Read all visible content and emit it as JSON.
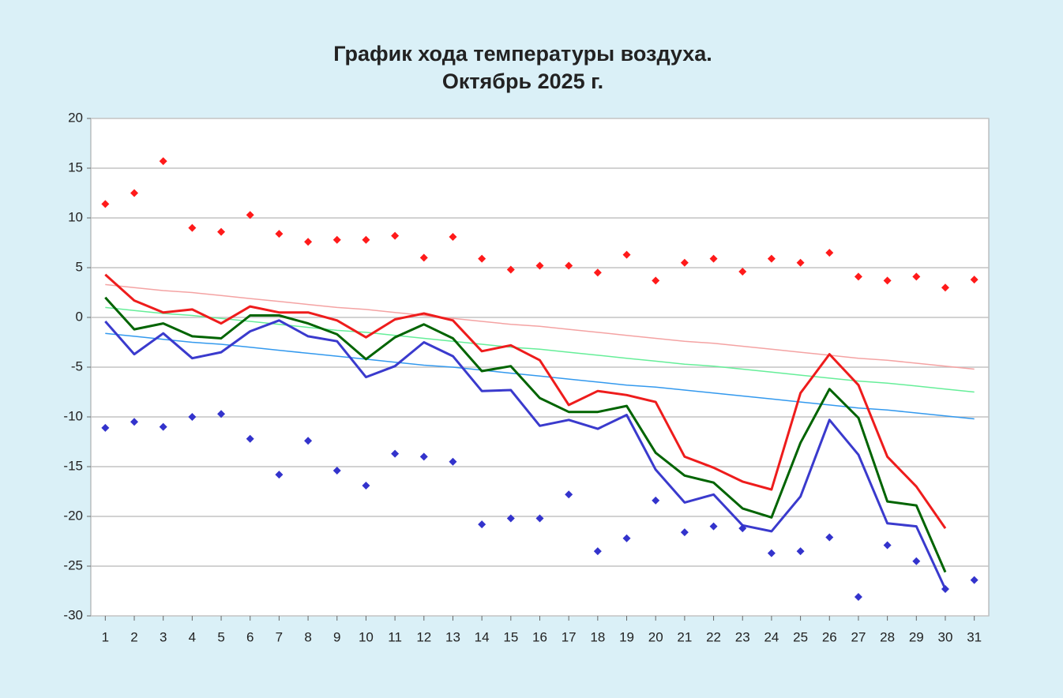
{
  "chart_data": {
    "type": "line",
    "title": "График хода температуры воздуха.",
    "subtitle": "Октябрь 2025 г.",
    "categories": [
      "1",
      "2",
      "3",
      "4",
      "5",
      "6",
      "7",
      "8",
      "9",
      "10",
      "11",
      "12",
      "13",
      "14",
      "15",
      "16",
      "17",
      "18",
      "19",
      "20",
      "21",
      "22",
      "23",
      "24",
      "25",
      "26",
      "27",
      "28",
      "29",
      "30",
      "31"
    ],
    "ylim": [
      -30,
      20
    ],
    "yticks": [
      -30,
      -25,
      -20,
      -15,
      -10,
      -5,
      0,
      5,
      10,
      15,
      20
    ],
    "grid": true,
    "series": [
      {
        "style": "line",
        "width": 1.5,
        "color": "#f4a3a3",
        "values": [
          3.3,
          3.0,
          2.7,
          2.5,
          2.2,
          1.9,
          1.6,
          1.3,
          1.0,
          0.8,
          0.5,
          0.2,
          -0.1,
          -0.4,
          -0.7,
          -0.9,
          -1.2,
          -1.5,
          -1.8,
          -2.1,
          -2.4,
          -2.6,
          -2.9,
          -3.2,
          -3.5,
          -3.8,
          -4.1,
          -4.3,
          -4.6,
          -4.9,
          -5.2
        ]
      },
      {
        "style": "line",
        "width": 1.5,
        "color": "#66ee99",
        "values": [
          1.0,
          0.7,
          0.4,
          0.2,
          -0.1,
          -0.4,
          -0.7,
          -1.0,
          -1.3,
          -1.5,
          -1.8,
          -2.1,
          -2.4,
          -2.7,
          -3.0,
          -3.2,
          -3.5,
          -3.8,
          -4.1,
          -4.4,
          -4.7,
          -4.9,
          -5.2,
          -5.5,
          -5.8,
          -6.1,
          -6.4,
          -6.6,
          -6.9,
          -7.2,
          -7.5
        ]
      },
      {
        "style": "line",
        "width": 1.5,
        "color": "#3399ee",
        "values": [
          -1.6,
          -1.9,
          -2.2,
          -2.5,
          -2.7,
          -3.0,
          -3.3,
          -3.6,
          -3.9,
          -4.2,
          -4.5,
          -4.8,
          -5.0,
          -5.3,
          -5.6,
          -5.9,
          -6.2,
          -6.5,
          -6.8,
          -7.0,
          -7.3,
          -7.6,
          -7.9,
          -8.2,
          -8.5,
          -8.8,
          -9.1,
          -9.3,
          -9.6,
          -9.9,
          -10.2
        ]
      },
      {
        "style": "line",
        "width": 3,
        "color": "#ee1c1c",
        "values": [
          4.3,
          1.7,
          0.5,
          0.8,
          -0.6,
          1.1,
          0.5,
          0.5,
          -0.3,
          -2.0,
          -0.2,
          0.4,
          -0.3,
          -3.4,
          -2.8,
          -4.3,
          -8.8,
          -7.4,
          -7.8,
          -8.5,
          -14.0,
          -15.1,
          -16.5,
          -17.3,
          -7.6,
          -3.7,
          -6.8,
          -14.0,
          -17.0,
          -21.2,
          null
        ]
      },
      {
        "style": "line",
        "width": 3,
        "color": "#006400",
        "values": [
          2.0,
          -1.2,
          -0.6,
          -1.9,
          -2.1,
          0.2,
          0.2,
          -0.6,
          -1.7,
          -4.2,
          -2.0,
          -0.7,
          -2.1,
          -5.4,
          -4.9,
          -8.1,
          -9.5,
          -9.5,
          -8.9,
          -13.6,
          -15.9,
          -16.6,
          -19.2,
          -20.1,
          -12.6,
          -7.2,
          -10.1,
          -18.5,
          -18.9,
          -25.6,
          null
        ]
      },
      {
        "style": "line",
        "width": 3,
        "color": "#3a3acd",
        "values": [
          -0.4,
          -3.7,
          -1.6,
          -4.1,
          -3.5,
          -1.4,
          -0.3,
          -1.9,
          -2.4,
          -6.0,
          -4.9,
          -2.5,
          -3.9,
          -7.4,
          -7.3,
          -10.9,
          -10.3,
          -11.2,
          -9.8,
          -15.3,
          -18.6,
          -17.8,
          -20.9,
          -21.5,
          -18.0,
          -10.3,
          -13.8,
          -20.7,
          -21.0,
          -27.3,
          null
        ]
      },
      {
        "style": "markers",
        "color": "#ff1a1a",
        "values": [
          11.4,
          12.5,
          15.7,
          9.0,
          8.6,
          10.3,
          8.4,
          7.6,
          7.8,
          7.8,
          8.2,
          6.0,
          8.1,
          5.9,
          4.8,
          5.2,
          5.2,
          4.5,
          6.3,
          3.7,
          5.5,
          5.9,
          4.6,
          5.9,
          5.5,
          6.5,
          4.1,
          3.7,
          4.1,
          3.0,
          3.8
        ]
      },
      {
        "style": "markers",
        "color": "#3333cc",
        "values": [
          -11.1,
          -10.5,
          -11.0,
          -10.0,
          -9.7,
          -12.2,
          -15.8,
          -12.4,
          -15.4,
          -16.9,
          -13.7,
          -14.0,
          -14.5,
          -20.8,
          -20.2,
          -20.2,
          -17.8,
          -23.5,
          -22.2,
          -18.4,
          -21.6,
          -21.0,
          -21.2,
          -23.7,
          -23.5,
          -22.1,
          -28.1,
          -22.9,
          -24.5,
          -27.3,
          -26.4
        ]
      }
    ]
  }
}
